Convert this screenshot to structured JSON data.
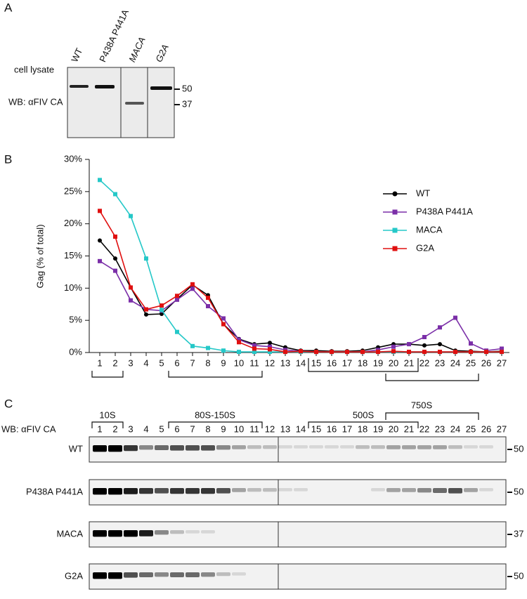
{
  "panel_a": {
    "label": "A",
    "lanes": [
      "WT",
      "P438A P441A",
      "MACA",
      "G2A"
    ],
    "row_label": "cell lysate",
    "antibody": "WB: αFIV CA",
    "markers": [
      "50",
      "37"
    ]
  },
  "panel_b": {
    "label": "B"
  },
  "chart_data": {
    "type": "line",
    "y_label": "Gag (% of total)",
    "categories": [
      "1",
      "2",
      "3",
      "4",
      "5",
      "6",
      "7",
      "8",
      "9",
      "10",
      "11",
      "12",
      "13",
      "14",
      "15",
      "16",
      "17",
      "18",
      "19",
      "20",
      "21",
      "22",
      "23",
      "24",
      "25",
      "26",
      "27"
    ],
    "series": [
      {
        "name": "WT",
        "color": "#000000",
        "marker": "circle",
        "values": [
          17.4,
          14.6,
          10.1,
          5.9,
          6.0,
          8.3,
          10.5,
          8.9,
          4.4,
          2.1,
          1.3,
          1.5,
          0.8,
          0.3,
          0.3,
          0.2,
          0.2,
          0.3,
          0.8,
          1.3,
          1.3,
          1.1,
          1.3,
          0.3,
          0.2,
          0.1,
          0.2
        ]
      },
      {
        "name": "P438A P441A",
        "color": "#7b2fa8",
        "marker": "square",
        "values": [
          14.2,
          12.7,
          8.1,
          6.7,
          6.5,
          8.2,
          9.9,
          7.2,
          5.3,
          2.0,
          1.1,
          0.9,
          0.4,
          0.2,
          0.1,
          0.1,
          0.1,
          0.1,
          0.4,
          0.9,
          1.3,
          2.4,
          3.9,
          5.4,
          1.4,
          0.3,
          0.6
        ]
      },
      {
        "name": "MACA",
        "color": "#25c8c8",
        "marker": "square",
        "values": [
          26.8,
          24.6,
          21.2,
          14.6,
          6.6,
          3.2,
          1.0,
          0.7,
          0.3,
          0.1,
          0.1,
          0.1,
          0.1,
          0.1,
          0.1,
          0.1,
          0.1,
          0.1,
          0.1,
          0.1,
          0.1,
          0.1,
          0.1,
          0.1,
          0.1,
          0.1,
          0.1
        ]
      },
      {
        "name": "G2A",
        "color": "#e01010",
        "marker": "square",
        "values": [
          22.0,
          18.0,
          10.1,
          6.7,
          7.3,
          8.8,
          10.6,
          8.5,
          4.4,
          1.6,
          0.6,
          0.5,
          0.1,
          0.2,
          0.1,
          0.1,
          0.1,
          0.1,
          0.1,
          0.2,
          0.1,
          0.1,
          0.1,
          0.1,
          0.1,
          0.1,
          0.1
        ]
      }
    ],
    "ylim": [
      0,
      30
    ],
    "yticks": [
      {
        "value": 0,
        "label": "0%"
      },
      {
        "value": 5,
        "label": "5%"
      },
      {
        "value": 10,
        "label": "10%"
      },
      {
        "value": 15,
        "label": "15%"
      },
      {
        "value": 20,
        "label": "20%"
      },
      {
        "value": 25,
        "label": "25%"
      },
      {
        "value": 30,
        "label": "30%"
      }
    ],
    "legend": "upper right"
  },
  "panel_c": {
    "label": "C",
    "antibody": "WB: αFIV CA",
    "groups": [
      "10S",
      "80S-150S",
      "500S",
      "750S"
    ],
    "rows": [
      {
        "name": "WT",
        "marker": "50"
      },
      {
        "name": "P438A P441A",
        "marker": "50"
      },
      {
        "name": "MACA",
        "marker": "37"
      },
      {
        "name": "G2A",
        "marker": "50"
      }
    ]
  }
}
